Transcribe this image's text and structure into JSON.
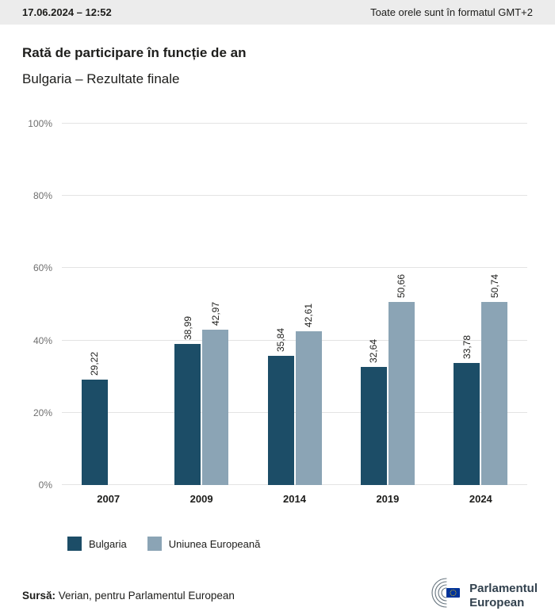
{
  "topbar": {
    "datetime": "17.06.2024 – 12:52",
    "timezone_note": "Toate orele sunt în formatul GMT+2"
  },
  "header": {
    "title": "Rată de participare în funcție de an",
    "subtitle": "Bulgaria – Rezultate finale"
  },
  "chart_data": {
    "type": "bar",
    "title": "Rată de participare în funcție de an",
    "subtitle": "Bulgaria – Rezultate finale",
    "categories": [
      "2007",
      "2009",
      "2014",
      "2019",
      "2024"
    ],
    "series": [
      {
        "name": "Bulgaria",
        "color": "#1c4d67",
        "values": [
          29.22,
          38.99,
          35.84,
          32.64,
          33.78
        ]
      },
      {
        "name": "Uniunea Europeană",
        "color": "#8ba4b5",
        "values": [
          null,
          42.97,
          42.61,
          50.66,
          50.74
        ]
      }
    ],
    "value_labels": [
      [
        "29,22",
        "38,99",
        "35,84",
        "32,64",
        "33,78"
      ],
      [
        null,
        "42,97",
        "42,61",
        "50,66",
        "50,74"
      ]
    ],
    "ylim": [
      0,
      100
    ],
    "yticks": [
      0,
      20,
      40,
      60,
      80,
      100
    ],
    "ytick_labels": [
      "0%",
      "20%",
      "40%",
      "60%",
      "80%",
      "100%"
    ],
    "grid": true,
    "legend_position": "bottom-left",
    "value_label_orientation": "vertical"
  },
  "footer": {
    "source_label": "Sursă:",
    "source_text": " Verian, pentru Parlamentul European",
    "logo_text_line1": "Parlamentul",
    "logo_text_line2": "European"
  }
}
